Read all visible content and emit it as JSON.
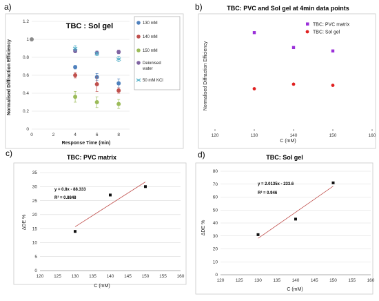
{
  "panels": {
    "a": {
      "letter": "a)"
    },
    "b": {
      "letter": "b)"
    },
    "c": {
      "letter": "c)"
    },
    "d": {
      "letter": "d)"
    }
  },
  "chart_data": [
    {
      "id": "a",
      "type": "scatter",
      "title": "TBC : Sol gel",
      "xlabel": "Response Time (min)",
      "ylabel": "Normalised Diffraction Efficiency",
      "xlim": [
        0,
        9
      ],
      "ylim": [
        0,
        1.2
      ],
      "xticks": [
        "0",
        "2",
        "4",
        "6",
        "8"
      ],
      "yticks": [
        "0",
        "0.2",
        "0.4",
        "0.6",
        "0.8",
        "1",
        "1.2"
      ],
      "legend_position": "top-right",
      "series": [
        {
          "name": "130 mM",
          "color": "#4f81bd",
          "x": [
            4,
            6,
            8
          ],
          "y": [
            0.69,
            0.58,
            0.51
          ],
          "err": [
            0.02,
            0.04,
            0.05
          ]
        },
        {
          "name": "140 mM",
          "color": "#c0504d",
          "x": [
            4,
            6,
            8
          ],
          "y": [
            0.6,
            0.5,
            0.43
          ],
          "err": [
            0.03,
            0.08,
            0.03
          ]
        },
        {
          "name": "150 mM",
          "color": "#9bbb59",
          "x": [
            4,
            6,
            8
          ],
          "y": [
            0.36,
            0.3,
            0.28
          ],
          "err": [
            0.06,
            0.06,
            0.05
          ]
        },
        {
          "name": "Deionised water",
          "color": "#8064a2",
          "x": [
            4,
            6,
            8
          ],
          "y": [
            0.87,
            0.85,
            0.86
          ],
          "err": [
            0.02,
            0.02,
            0.02
          ]
        },
        {
          "name": "50 mM KCl",
          "color": "#4bacc6",
          "x": [
            4,
            6,
            8
          ],
          "y": [
            0.9,
            0.84,
            0.78
          ],
          "err": [
            0.03,
            0.02,
            0.03
          ]
        }
      ],
      "common_point": {
        "x": 0,
        "y": 1.0
      }
    },
    {
      "id": "b",
      "type": "scatter",
      "title": "TBC: PVC and Sol gel at 4min data points",
      "xlabel": "C (mM)",
      "ylabel": "Normalised Diffraction Efficiency",
      "xlim": [
        120,
        160
      ],
      "ylim": [
        0,
        1
      ],
      "xticks": [
        "120",
        "130",
        "140",
        "150",
        "160"
      ],
      "legend_position": "top-right",
      "series": [
        {
          "name": "TBC: PVC matrix",
          "color": "#9b30d9",
          "marker": "square",
          "x": [
            130,
            140,
            150
          ],
          "y": [
            0.86,
            0.73,
            0.7
          ]
        },
        {
          "name": "TBC: Sol gel",
          "color": "#e02020",
          "marker": "circle",
          "x": [
            130,
            140,
            150
          ],
          "y": [
            0.37,
            0.41,
            0.4
          ]
        }
      ]
    },
    {
      "id": "c",
      "type": "scatter",
      "title": "TBC: PVC matrix",
      "xlabel": "C (mM)",
      "ylabel": "ΔDE %",
      "xlim": [
        120,
        160
      ],
      "ylim": [
        0,
        35
      ],
      "xticks": [
        "120",
        "125",
        "130",
        "135",
        "140",
        "145",
        "150",
        "155",
        "160"
      ],
      "yticks": [
        "0",
        "5",
        "10",
        "15",
        "20",
        "25",
        "30",
        "35"
      ],
      "equation": "y = 0.8x - 88.333",
      "r2": "R² = 0.8848",
      "trendline": {
        "slope": 0.8,
        "intercept": -88.333,
        "x_range": [
          130,
          150
        ]
      },
      "points": {
        "x": [
          130,
          140,
          150
        ],
        "y": [
          14,
          27,
          30
        ]
      }
    },
    {
      "id": "d",
      "type": "scatter",
      "title": "TBC: Sol gel",
      "xlabel": "C (mM)",
      "ylabel": "ΔDE %",
      "xlim": [
        120,
        160
      ],
      "ylim": [
        0,
        80
      ],
      "xticks": [
        "120",
        "125",
        "130",
        "135",
        "140",
        "145",
        "150",
        "155",
        "160"
      ],
      "yticks": [
        "0",
        "10",
        "20",
        "30",
        "40",
        "50",
        "60",
        "70",
        "80"
      ],
      "equation": "y = 2.0135x - 233.6",
      "r2": "R² = 0.946",
      "trendline": {
        "slope": 2.0135,
        "intercept": -233.6,
        "x_range": [
          130,
          150
        ]
      },
      "points": {
        "x": [
          130,
          140,
          150
        ],
        "y": [
          31,
          43,
          71
        ]
      }
    }
  ]
}
